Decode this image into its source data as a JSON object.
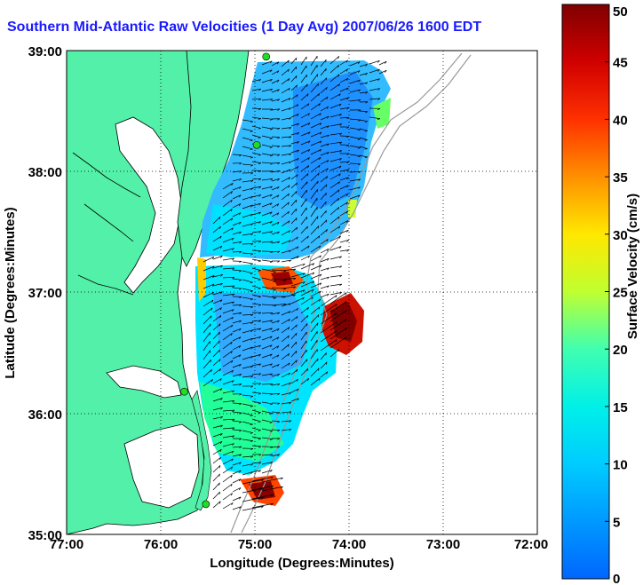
{
  "title": "Southern Mid-Atlantic Raw Velocities (1 Day Avg) 2007/06/26 1600 EDT",
  "axes": {
    "xlabel": "Longitude (Degrees:Minutes)",
    "ylabel": "Latitude (Degrees:Minutes)",
    "x_ticks": [
      "77:00",
      "76:00",
      "75:00",
      "74:00",
      "73:00",
      "72:00"
    ],
    "y_ticks": [
      "39:00",
      "38:00",
      "37:00",
      "36:00",
      "35:00"
    ],
    "xlim": [
      -77,
      -72
    ],
    "ylim": [
      35,
      39
    ],
    "grid": true
  },
  "colorbar": {
    "label": "Surface Velocity (cm/s)",
    "ticks": [
      "0",
      "5",
      "10",
      "15",
      "20",
      "25",
      "30",
      "35",
      "40",
      "45",
      "50"
    ],
    "range": [
      0,
      50
    ]
  },
  "colors": {
    "land": "#52f0a8",
    "water": "#ffffff",
    "title": "#1a1aff",
    "station": "#22dd22"
  },
  "stations": [
    {
      "lon": -74.88,
      "lat": 38.95
    },
    {
      "lon": -74.98,
      "lat": 38.22
    },
    {
      "lon": -75.75,
      "lat": 36.18
    },
    {
      "lon": -75.52,
      "lat": 35.25
    }
  ]
}
